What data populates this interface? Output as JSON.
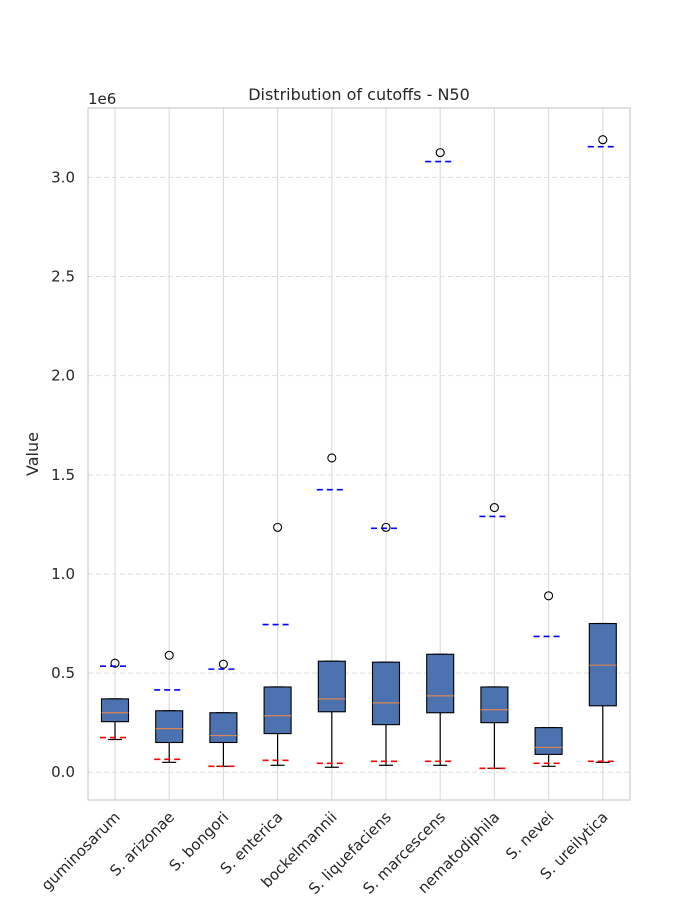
{
  "chart_data": {
    "type": "box",
    "title": "Distribution of cutoffs - N50",
    "xlabel": "",
    "ylabel": "Value",
    "offset_label": "1e6",
    "y_scale_factor": 1000000,
    "ylim": [
      -0.14,
      3.35
    ],
    "yticks": [
      0.0,
      0.5,
      1.0,
      1.5,
      2.0,
      2.5,
      3.0
    ],
    "ytick_labels": [
      "0.0",
      "0.5",
      "1.0",
      "1.5",
      "2.0",
      "2.5",
      "3.0"
    ],
    "grid": true,
    "categories": [
      "S. grimesii/leguminosarum",
      "S. arizonae",
      "S. bongori",
      "S. enterica",
      "S. bockelmannii",
      "S. liquefaciens",
      "S. marcescens",
      "S. nematodiphila",
      "S. nevei",
      "S. ureilytica"
    ],
    "category_labels_visible": [
      "guminosarum",
      "S. arizonae",
      "S. bongori",
      "S. enterica",
      "bockelmannii",
      "S. liquefaciens",
      "S. marcescens",
      "nematodiphila",
      "S. nevei",
      "S. ureilytica"
    ],
    "boxes": [
      {
        "whisker_low": 0.165,
        "q1": 0.255,
        "median": 0.3,
        "q3": 0.37,
        "whisker_high": 0.37,
        "outliers": [
          0.55
        ],
        "upper_cutoff": 0.535,
        "lower_cutoff": 0.175
      },
      {
        "whisker_low": 0.05,
        "q1": 0.15,
        "median": 0.22,
        "q3": 0.31,
        "whisker_high": 0.31,
        "outliers": [
          0.59
        ],
        "upper_cutoff": 0.415,
        "lower_cutoff": 0.065
      },
      {
        "whisker_low": 0.03,
        "q1": 0.15,
        "median": 0.185,
        "q3": 0.3,
        "whisker_high": 0.3,
        "outliers": [
          0.545
        ],
        "upper_cutoff": 0.52,
        "lower_cutoff": 0.03
      },
      {
        "whisker_low": 0.035,
        "q1": 0.195,
        "median": 0.285,
        "q3": 0.43,
        "whisker_high": 0.43,
        "outliers": [
          1.235
        ],
        "upper_cutoff": 0.745,
        "lower_cutoff": 0.06
      },
      {
        "whisker_low": 0.025,
        "q1": 0.305,
        "median": 0.37,
        "q3": 0.56,
        "whisker_high": 0.56,
        "outliers": [
          1.585
        ],
        "upper_cutoff": 1.425,
        "lower_cutoff": 0.045
      },
      {
        "whisker_low": 0.035,
        "q1": 0.24,
        "median": 0.35,
        "q3": 0.555,
        "whisker_high": 0.555,
        "outliers": [
          1.235
        ],
        "upper_cutoff": 1.23,
        "lower_cutoff": 0.055
      },
      {
        "whisker_low": 0.035,
        "q1": 0.3,
        "median": 0.385,
        "q3": 0.595,
        "whisker_high": 0.595,
        "outliers": [
          3.125
        ],
        "upper_cutoff": 3.08,
        "lower_cutoff": 0.055
      },
      {
        "whisker_low": 0.02,
        "q1": 0.25,
        "median": 0.315,
        "q3": 0.43,
        "whisker_high": 0.43,
        "outliers": [
          1.335
        ],
        "upper_cutoff": 1.29,
        "lower_cutoff": 0.02
      },
      {
        "whisker_low": 0.03,
        "q1": 0.09,
        "median": 0.125,
        "q3": 0.225,
        "whisker_high": 0.225,
        "outliers": [
          0.89
        ],
        "upper_cutoff": 0.685,
        "lower_cutoff": 0.045
      },
      {
        "whisker_low": 0.05,
        "q1": 0.335,
        "median": 0.54,
        "q3": 0.75,
        "whisker_high": 0.75,
        "outliers": [
          3.19
        ],
        "upper_cutoff": 3.155,
        "lower_cutoff": 0.055
      }
    ],
    "colors": {
      "box_fill": "#4c72b0",
      "median": "#dd8452",
      "upper_cutoff": "#0000ff",
      "lower_cutoff": "#ff0000",
      "grid": "#dddddd",
      "axis_frame": "#cccccc"
    }
  }
}
